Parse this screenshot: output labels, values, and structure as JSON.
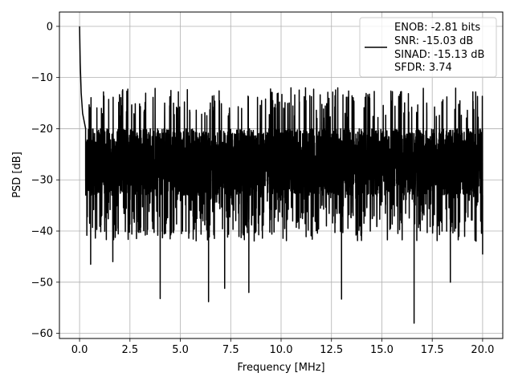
{
  "chart_data": {
    "type": "line",
    "title": "",
    "xlabel": "Frequency [MHz]",
    "ylabel": "PSD [dB]",
    "xlim": [
      -1.0,
      21.0
    ],
    "ylim": [
      -61.0,
      2.8
    ],
    "xticks": [
      0.0,
      2.5,
      5.0,
      7.5,
      10.0,
      12.5,
      15.0,
      17.5,
      20.0
    ],
    "xtick_labels": [
      "0.0",
      "2.5",
      "5.0",
      "7.5",
      "10.0",
      "12.5",
      "15.0",
      "17.5",
      "20.0"
    ],
    "yticks": [
      0,
      -10,
      -20,
      -30,
      -40,
      -50,
      -60
    ],
    "ytick_labels": [
      "0",
      "−10",
      "−20",
      "−30",
      "−40",
      "−50",
      "−60"
    ],
    "grid": true,
    "legend_position": "top-right",
    "legend_lines": [
      "ENOB: -2.81 bits",
      "SNR: -15.03 dB",
      "SINAD: -15.13 dB",
      "SFDR: 3.74"
    ],
    "line_color": "#000000",
    "noise_band": {
      "x_range": [
        0.0,
        20.0
      ],
      "upper_typical": -20,
      "upper_peak": -12,
      "lower_typical": -33,
      "lower_typical_deep": -38
    },
    "peak": {
      "x": 0.0,
      "y": 0.0
    },
    "low_frequency_decay": [
      {
        "x": 0.0,
        "y": 0.0
      },
      {
        "x": 0.03,
        "y": -7
      },
      {
        "x": 0.08,
        "y": -13
      },
      {
        "x": 0.15,
        "y": -17
      },
      {
        "x": 0.3,
        "y": -20
      }
    ],
    "notable_dips": [
      {
        "x": 0.55,
        "y": -46.5
      },
      {
        "x": 1.65,
        "y": -46
      },
      {
        "x": 4.0,
        "y": -53.2
      },
      {
        "x": 6.4,
        "y": -53.8
      },
      {
        "x": 7.2,
        "y": -51.2
      },
      {
        "x": 8.4,
        "y": -52.0
      },
      {
        "x": 13.0,
        "y": -53.3
      },
      {
        "x": 16.6,
        "y": -58.0
      },
      {
        "x": 18.4,
        "y": -50.0
      },
      {
        "x": 20.0,
        "y": -44.5
      }
    ]
  }
}
